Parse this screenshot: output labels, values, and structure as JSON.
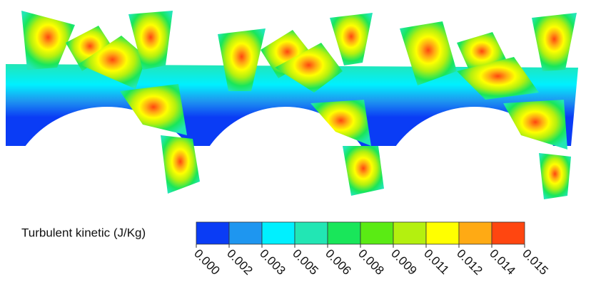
{
  "chart_data": {
    "type": "contour",
    "colorbar_label": "Turbulent kinetic (J/Kg)",
    "colors": [
      "#0a3cf5",
      "#1e96f0",
      "#00f0ff",
      "#22e6b4",
      "#19e65a",
      "#5aeb14",
      "#b4f00f",
      "#ffff00",
      "#ffaa14",
      "#ff4610"
    ],
    "clim": [
      0,
      0.015
    ],
    "cticks": [
      {
        "value": 0,
        "label": "0.000"
      },
      {
        "value": 0.0015,
        "label": "0.002"
      },
      {
        "value": 0.003,
        "label": "0.003"
      },
      {
        "value": 0.0045,
        "label": "0.005"
      },
      {
        "value": 0.006,
        "label": "0.006"
      },
      {
        "value": 0.0075,
        "label": "0.008"
      },
      {
        "value": 0.009,
        "label": "0.009"
      },
      {
        "value": 0.0105,
        "label": "0.011"
      },
      {
        "value": 0.012,
        "label": "0.012"
      },
      {
        "value": 0.0135,
        "label": "0.014"
      },
      {
        "value": 0.015,
        "label": "0.015"
      }
    ]
  }
}
